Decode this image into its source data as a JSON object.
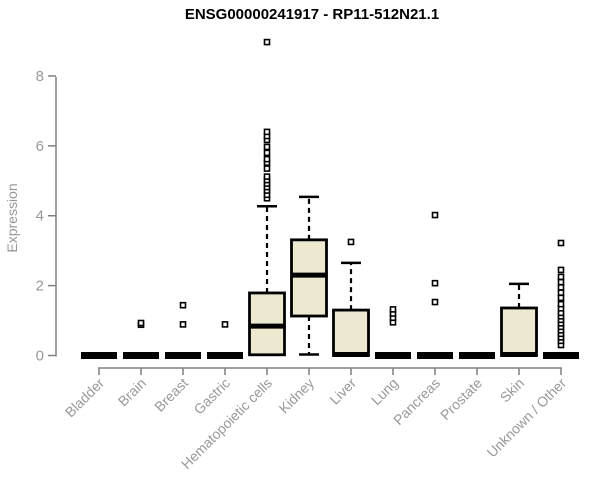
{
  "chart_data": {
    "type": "boxplot",
    "title": "ENSG00000241917 - RP11-512N21.1",
    "ylabel": "Expression",
    "xlabel": "",
    "ylim": [
      0,
      8
    ],
    "yticks": [
      0,
      2,
      4,
      6,
      8
    ],
    "grid": false,
    "legend": "none",
    "categories": [
      "Bladder",
      "Brain",
      "Breast",
      "Gastric",
      "Hematopoietic cells",
      "Kidney",
      "Liver",
      "Lung",
      "Pancreas",
      "Prostate",
      "Skin",
      "Unknown / Other"
    ],
    "boxes": [
      {
        "category": "Bladder",
        "q1": 0,
        "median": 0,
        "q3": 0.02,
        "whisker_low": 0,
        "whisker_high": 0.02,
        "outliers": []
      },
      {
        "category": "Brain",
        "q1": 0,
        "median": 0,
        "q3": 0.02,
        "whisker_low": 0,
        "whisker_high": 0.02,
        "outliers": [
          0.88,
          0.93
        ]
      },
      {
        "category": "Breast",
        "q1": 0,
        "median": 0,
        "q3": 0.02,
        "whisker_low": 0,
        "whisker_high": 0.02,
        "outliers": [
          0.89,
          1.44
        ]
      },
      {
        "category": "Gastric",
        "q1": 0,
        "median": 0,
        "q3": 0.02,
        "whisker_low": 0,
        "whisker_high": 0.02,
        "outliers": [
          0.89
        ]
      },
      {
        "category": "Hematopoietic cells",
        "q1": 0.02,
        "median": 0.84,
        "q3": 1.79,
        "whisker_low": 0.02,
        "whisker_high": 4.27,
        "outliers": [
          4.5,
          4.6,
          4.72,
          4.82,
          4.92,
          5.02,
          5.12,
          5.35,
          5.52,
          5.62,
          5.8,
          5.97,
          6.17,
          6.28,
          6.4,
          8.97
        ]
      },
      {
        "category": "Kidney",
        "q1": 1.13,
        "median": 2.3,
        "q3": 3.31,
        "whisker_low": 0.03,
        "whisker_high": 4.54,
        "outliers": []
      },
      {
        "category": "Liver",
        "q1": 0,
        "median": 0.03,
        "q3": 1.3,
        "whisker_low": 0,
        "whisker_high": 2.65,
        "outliers": [
          3.25
        ]
      },
      {
        "category": "Lung",
        "q1": 0,
        "median": 0,
        "q3": 0.02,
        "whisker_low": 0,
        "whisker_high": 0.02,
        "outliers": [
          0.95,
          1.08,
          1.2,
          1.32
        ]
      },
      {
        "category": "Pancreas",
        "q1": 0,
        "median": 0,
        "q3": 0.02,
        "whisker_low": 0,
        "whisker_high": 0.02,
        "outliers": [
          1.53,
          2.07,
          4.02
        ]
      },
      {
        "category": "Prostate",
        "q1": 0,
        "median": 0,
        "q3": 0.02,
        "whisker_low": 0,
        "whisker_high": 0.02,
        "outliers": []
      },
      {
        "category": "Skin",
        "q1": 0,
        "median": 0.03,
        "q3": 1.36,
        "whisker_low": 0,
        "whisker_high": 2.05,
        "outliers": []
      },
      {
        "category": "Unknown / Other",
        "q1": 0,
        "median": 0,
        "q3": 0.02,
        "whisker_low": 0,
        "whisker_high": 0.02,
        "outliers": [
          0.3,
          0.42,
          0.52,
          0.62,
          0.72,
          0.82,
          0.92,
          1.02,
          1.12,
          1.22,
          1.35,
          1.47,
          1.65,
          1.8,
          1.95,
          2.1,
          2.25,
          2.45,
          3.22
        ]
      }
    ],
    "colors": {
      "box_fill": "#EDE8D0",
      "box_stroke": "#000000",
      "median": "#000000",
      "flat_bar": "#000000",
      "axis": "#808080",
      "tick_label": "#999999",
      "title": "#000000"
    }
  }
}
